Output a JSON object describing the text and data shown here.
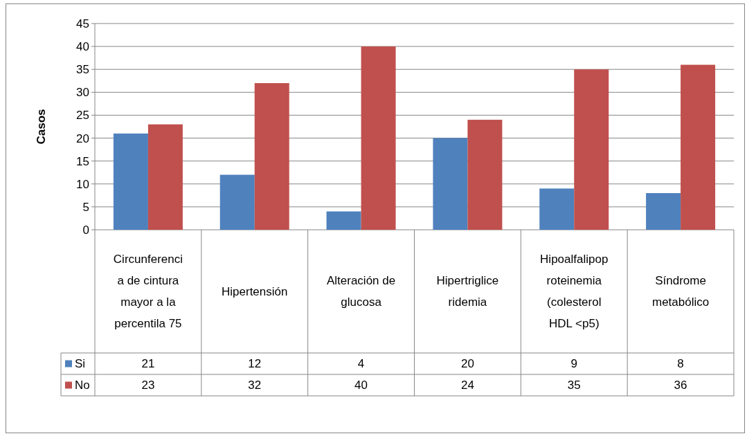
{
  "chart_data": {
    "type": "bar",
    "ylabel": "Casos",
    "categories": [
      "Circunferencia de cintura mayor a la percentila 75",
      "Hipertensión",
      "Alteración de glucosa",
      "Hipertrigliceridemia",
      "Hipoalfalipoproteinemia (colesterol HDL <p5)",
      "Síndrome metabólico"
    ],
    "series": [
      {
        "name": "Si",
        "color": "#4f81bd",
        "values": [
          21,
          12,
          4,
          20,
          9,
          8
        ]
      },
      {
        "name": "No",
        "color": "#c0504d",
        "values": [
          23,
          32,
          40,
          24,
          35,
          36
        ]
      }
    ],
    "ylim": [
      0,
      45
    ],
    "yticks": [
      0,
      5,
      10,
      15,
      20,
      25,
      30,
      35,
      40,
      45
    ],
    "grid": "y",
    "legend": "bottom",
    "data_labels": true
  }
}
